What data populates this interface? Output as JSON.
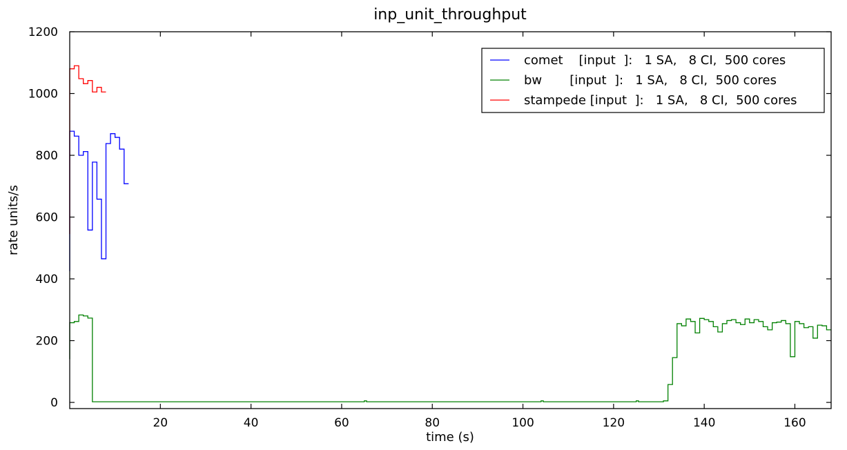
{
  "chart_data": {
    "type": "line",
    "style": "step",
    "title": "inp_unit_throughput",
    "xlabel": "time (s)",
    "ylabel": "rate units/s",
    "xlim": [
      0,
      168
    ],
    "ylim": [
      -20,
      1200
    ],
    "xticks": [
      20,
      40,
      60,
      80,
      100,
      120,
      140,
      160
    ],
    "yticks": [
      0,
      200,
      400,
      600,
      800,
      1000,
      1200
    ],
    "grid": false,
    "legend_position": "top-right",
    "series": [
      {
        "name": "comet    [input  ]:   1 SA,   8 CI,  500 cores",
        "color": "#0000ff",
        "points": [
          [
            0,
            425
          ],
          [
            0,
            878
          ],
          [
            1,
            878
          ],
          [
            1,
            862
          ],
          [
            2,
            862
          ],
          [
            2,
            800
          ],
          [
            3,
            800
          ],
          [
            3,
            812
          ],
          [
            4,
            812
          ],
          [
            4,
            558
          ],
          [
            5,
            558
          ],
          [
            5,
            778
          ],
          [
            6,
            778
          ],
          [
            6,
            658
          ],
          [
            7,
            658
          ],
          [
            7,
            465
          ],
          [
            8,
            465
          ],
          [
            8,
            838
          ],
          [
            9,
            838
          ],
          [
            9,
            870
          ],
          [
            10,
            870
          ],
          [
            10,
            858
          ],
          [
            11,
            858
          ],
          [
            11,
            820
          ],
          [
            12,
            820
          ],
          [
            12,
            708
          ],
          [
            13,
            708
          ]
        ]
      },
      {
        "name": "bw       [input  ]:   1 SA,   8 CI,  500 cores",
        "color": "#008000",
        "points": [
          [
            0,
            140
          ],
          [
            0,
            258
          ],
          [
            1,
            258
          ],
          [
            1,
            262
          ],
          [
            2,
            262
          ],
          [
            2,
            283
          ],
          [
            3,
            283
          ],
          [
            3,
            280
          ],
          [
            4,
            280
          ],
          [
            4,
            273
          ],
          [
            5,
            273
          ],
          [
            5,
            2
          ],
          [
            65,
            2
          ],
          [
            65,
            5
          ],
          [
            65.5,
            5
          ],
          [
            65.5,
            2
          ],
          [
            104,
            2
          ],
          [
            104,
            5
          ],
          [
            104.5,
            5
          ],
          [
            104.5,
            2
          ],
          [
            125,
            2
          ],
          [
            125,
            5
          ],
          [
            125.5,
            5
          ],
          [
            125.5,
            2
          ],
          [
            131,
            2
          ],
          [
            131,
            5
          ],
          [
            132,
            5
          ],
          [
            132,
            58
          ],
          [
            133,
            58
          ],
          [
            133,
            145
          ],
          [
            134,
            145
          ],
          [
            134,
            255
          ],
          [
            135,
            255
          ],
          [
            135,
            248
          ],
          [
            136,
            248
          ],
          [
            136,
            270
          ],
          [
            137,
            270
          ],
          [
            137,
            262
          ],
          [
            138,
            262
          ],
          [
            138,
            225
          ],
          [
            139,
            225
          ],
          [
            139,
            272
          ],
          [
            140,
            272
          ],
          [
            140,
            268
          ],
          [
            141,
            268
          ],
          [
            141,
            262
          ],
          [
            142,
            262
          ],
          [
            142,
            245
          ],
          [
            143,
            245
          ],
          [
            143,
            228
          ],
          [
            144,
            228
          ],
          [
            144,
            255
          ],
          [
            145,
            255
          ],
          [
            145,
            265
          ],
          [
            146,
            265
          ],
          [
            146,
            268
          ],
          [
            147,
            268
          ],
          [
            147,
            258
          ],
          [
            148,
            258
          ],
          [
            148,
            252
          ],
          [
            149,
            252
          ],
          [
            149,
            270
          ],
          [
            150,
            270
          ],
          [
            150,
            258
          ],
          [
            151,
            258
          ],
          [
            151,
            268
          ],
          [
            152,
            268
          ],
          [
            152,
            262
          ],
          [
            153,
            262
          ],
          [
            153,
            245
          ],
          [
            154,
            245
          ],
          [
            154,
            235
          ],
          [
            155,
            235
          ],
          [
            155,
            258
          ],
          [
            156,
            258
          ],
          [
            156,
            260
          ],
          [
            157,
            260
          ],
          [
            157,
            265
          ],
          [
            158,
            265
          ],
          [
            158,
            255
          ],
          [
            159,
            255
          ],
          [
            159,
            148
          ],
          [
            160,
            148
          ],
          [
            160,
            262
          ],
          [
            161,
            262
          ],
          [
            161,
            255
          ],
          [
            162,
            255
          ],
          [
            162,
            242
          ],
          [
            163,
            242
          ],
          [
            163,
            245
          ],
          [
            164,
            245
          ],
          [
            164,
            208
          ],
          [
            165,
            208
          ],
          [
            165,
            250
          ],
          [
            166,
            250
          ],
          [
            166,
            248
          ],
          [
            167,
            248
          ],
          [
            167,
            235
          ],
          [
            168,
            235
          ]
        ]
      },
      {
        "name": "stampede [input  ]:   1 SA,   8 CI,  500 cores",
        "color": "#ff0000",
        "points": [
          [
            0,
            545
          ],
          [
            0,
            1080
          ],
          [
            1,
            1080
          ],
          [
            1,
            1090
          ],
          [
            2,
            1090
          ],
          [
            2,
            1048
          ],
          [
            3,
            1048
          ],
          [
            3,
            1032
          ],
          [
            4,
            1032
          ],
          [
            4,
            1042
          ],
          [
            5,
            1042
          ],
          [
            5,
            1005
          ],
          [
            6,
            1005
          ],
          [
            6,
            1020
          ],
          [
            7,
            1020
          ],
          [
            7,
            1005
          ],
          [
            8,
            1005
          ]
        ]
      }
    ]
  }
}
